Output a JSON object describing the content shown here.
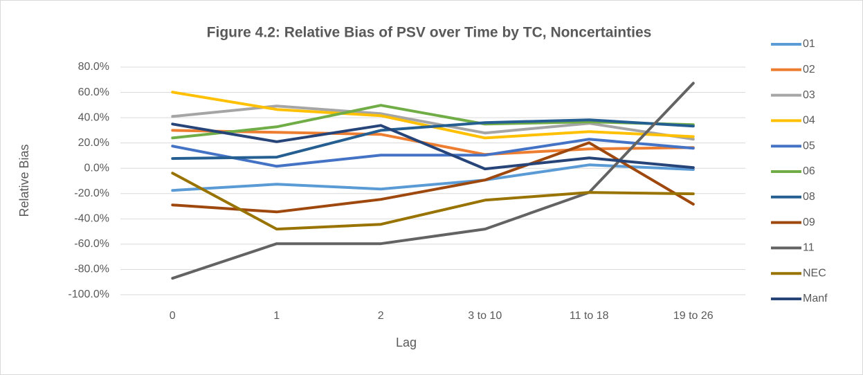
{
  "chart_data": {
    "type": "line",
    "title": "Figure 4.2: Relative Bias of PSV over Time by TC, Noncertainties",
    "x_label": "Lag",
    "y_label": "Relative Bias",
    "categories": [
      "0",
      "1",
      "2",
      "3 to 10",
      "11 to 18",
      "19 to 26"
    ],
    "ylim": [
      -100,
      80
    ],
    "yticks": [
      {
        "value": -100,
        "label": "-100.0%"
      },
      {
        "value": -80,
        "label": "-80.0%"
      },
      {
        "value": -60,
        "label": "-60.0%"
      },
      {
        "value": -40,
        "label": "-40.0%"
      },
      {
        "value": -20,
        "label": "-20.0%"
      },
      {
        "value": 0,
        "label": "0.0%"
      },
      {
        "value": 20,
        "label": "20.0%"
      },
      {
        "value": 40,
        "label": "40.0%"
      },
      {
        "value": 60,
        "label": "60.0%"
      },
      {
        "value": 80,
        "label": "80.0%"
      }
    ],
    "grid": true,
    "legend": "right",
    "series": [
      {
        "name": "01",
        "color": "#5b9bd5",
        "values": [
          -17.5,
          -12.6,
          -16.4,
          -9.3,
          2.7,
          -1
        ]
      },
      {
        "name": "02",
        "color": "#ed7d31",
        "values": [
          30,
          28.4,
          26.8,
          10.9,
          15.3,
          16.4
        ]
      },
      {
        "name": "03",
        "color": "#a5a5a5",
        "values": [
          41,
          49.2,
          43.2,
          27.9,
          35.6,
          23
        ]
      },
      {
        "name": "04",
        "color": "#ffc000",
        "values": [
          60.2,
          46.5,
          41.6,
          24,
          29,
          25
        ]
      },
      {
        "name": "05",
        "color": "#4472c4",
        "values": [
          17.5,
          1.6,
          10.4,
          10.4,
          23,
          15.9
        ]
      },
      {
        "name": "06",
        "color": "#70ad47",
        "values": [
          24,
          32.8,
          49.8,
          35,
          36.7,
          34.5
        ]
      },
      {
        "name": "08",
        "color": "#255e91",
        "values": [
          7.7,
          8.8,
          30,
          36.1,
          38.3,
          33.4
        ]
      },
      {
        "name": "09",
        "color": "#9e480e",
        "values": [
          -29,
          -34.5,
          -24.6,
          -9.3,
          20.2,
          -28.4
        ]
      },
      {
        "name": "11",
        "color": "#636363",
        "values": [
          -87,
          -59.6,
          -59.6,
          -48.1,
          -19.1,
          67.3
        ]
      },
      {
        "name": "NEC",
        "color": "#997300",
        "values": [
          -3.8,
          -48.1,
          -44.3,
          -25.2,
          -19.1,
          -20.2
        ]
      },
      {
        "name": "Manf",
        "color": "#264478",
        "values": [
          35,
          21,
          33.9,
          -0.5,
          8.2,
          0.5
        ]
      }
    ]
  }
}
